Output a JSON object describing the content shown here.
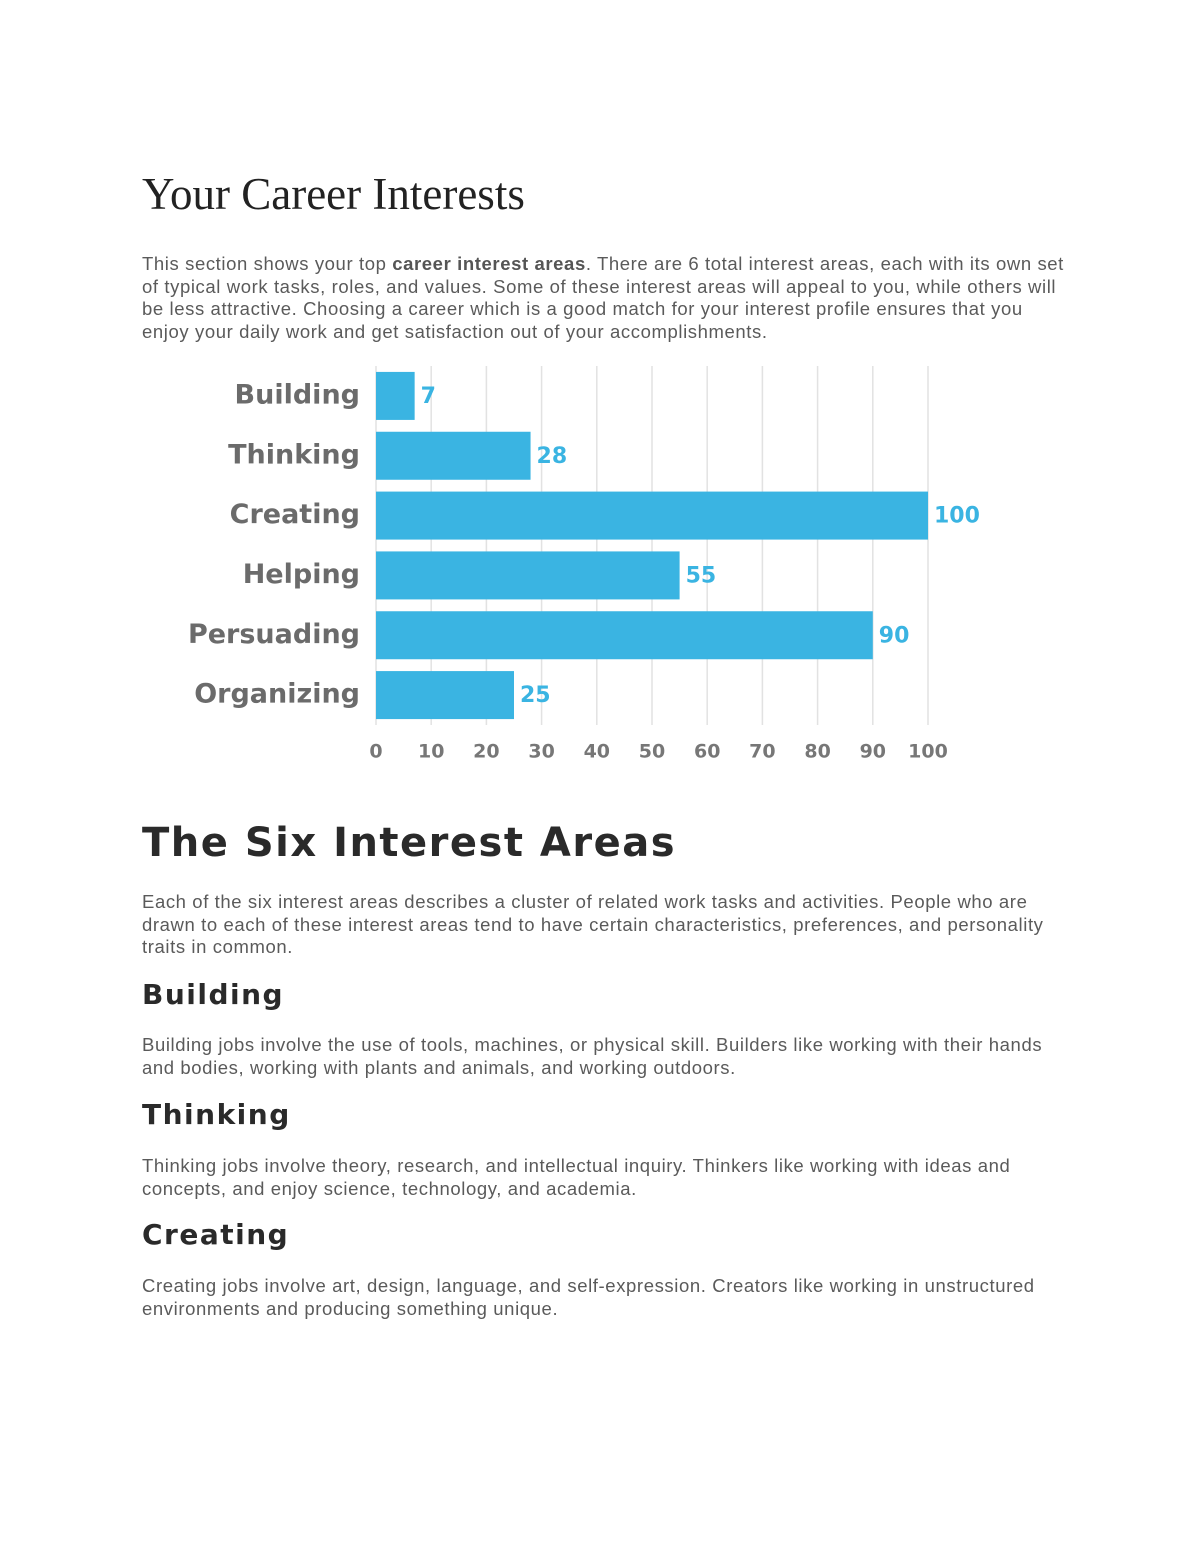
{
  "header": {
    "title": "Your Career Interests"
  },
  "intro": [
    "This section shows your top ",
    "career interest areas",
    ". There are 6 total interest areas, each with its own set of typical work tasks, roles, and values. Some of these interest areas will appeal to you, while others will be less attractive. Choosing a career which is a good match for your interest profile ensures that you enjoy your daily work and get satisfaction out of your accomplishments."
  ],
  "chart_data": {
    "type": "bar",
    "orientation": "horizontal",
    "categories": [
      "Building",
      "Thinking",
      "Creating",
      "Helping",
      "Persuading",
      "Organizing"
    ],
    "values": [
      7,
      28,
      100,
      55,
      90,
      25
    ],
    "color": "#3ab4e2",
    "xlim": [
      0,
      100
    ],
    "xticks": [
      0,
      10,
      20,
      30,
      40,
      50,
      60,
      70,
      80,
      90,
      100
    ],
    "grid": true
  },
  "section": {
    "title": "The Six Interest Areas",
    "text": "Each of the six interest areas describes a cluster of related work tasks and activities. People who are drawn to each of these interest areas tend to have certain characteristics, preferences, and personality traits in common.",
    "areas": [
      {
        "title": "Building",
        "text": "Building jobs involve the use of tools, machines, or physical skill. Builders like working with their hands and bodies, working with plants and animals, and working outdoors."
      },
      {
        "title": "Thinking",
        "text": "Thinking jobs involve theory, research, and intellectual inquiry. Thinkers like working with ideas and concepts, and enjoy science, technology, and academia."
      },
      {
        "title": "Creating",
        "text": "Creating jobs involve art, design, language, and self-expression. Creators like working in unstructured environments and producing something unique."
      }
    ]
  }
}
